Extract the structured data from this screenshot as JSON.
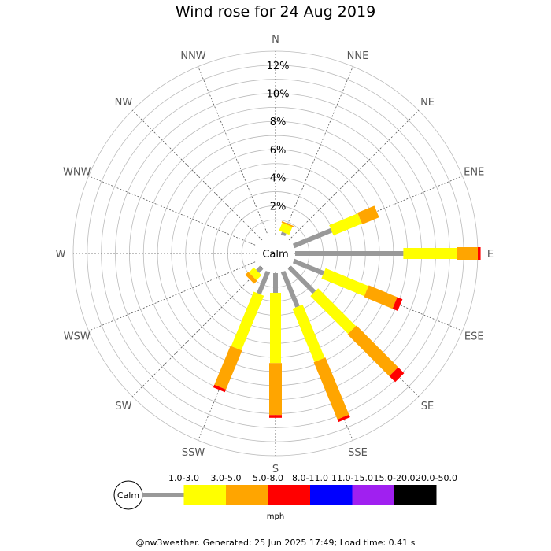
{
  "title": "Wind rose for 24 Aug 2019",
  "footer": "@nw3weather. Generated: 25 Jun 2025 17:49; Load time: 0.41 s",
  "chart_data": {
    "type": "wind-rose",
    "title": "Wind rose for 24 Aug 2019",
    "directions": [
      "N",
      "NNE",
      "NE",
      "ENE",
      "E",
      "ESE",
      "SE",
      "SSE",
      "S",
      "SSW",
      "SW",
      "WSW",
      "W",
      "WNW",
      "NW",
      "NNW"
    ],
    "radial_ticks": [
      "2%",
      "4%",
      "6%",
      "8%",
      "10%",
      "12%"
    ],
    "radial_max": 13,
    "grid": true,
    "calm_label": "Calm",
    "unit_label": "mph",
    "speed_bins": [
      {
        "label": "1.0-3.0",
        "color": "#999999"
      },
      {
        "label": "3.0-5.0",
        "color": "#ffff00"
      },
      {
        "label": "5.0-8.0",
        "color": "#ffa500"
      },
      {
        "label": "8.0-11.0",
        "color": "#ff0000"
      },
      {
        "label": "11.0-15.0",
        "color": "#0000ff"
      },
      {
        "label": "15.0-20.0",
        "color": "#a020f0"
      },
      {
        "label": "20.0-50.0",
        "color": "#000000"
      }
    ],
    "percentages": {
      "N": [
        0,
        0,
        0,
        0,
        0,
        0,
        0
      ],
      "NNE": [
        0.2,
        0.6,
        0.1,
        0,
        0,
        0,
        0
      ],
      "NE": [
        0,
        0,
        0,
        0,
        0,
        0,
        0
      ],
      "ENE": [
        2.9,
        2.2,
        1.3,
        0,
        0,
        0,
        0
      ],
      "E": [
        7.7,
        3.8,
        1.5,
        0.2,
        0,
        0,
        0
      ],
      "ESE": [
        2.3,
        3.3,
        2.2,
        0.4,
        0,
        0,
        0
      ],
      "SE": [
        2.5,
        3.8,
        4.2,
        0.6,
        0,
        0,
        0
      ],
      "SSE": [
        2.7,
        4.1,
        4.4,
        0.2,
        0,
        0,
        0
      ],
      "S": [
        1.4,
        5.0,
        3.7,
        0.2,
        0,
        0,
        0
      ],
      "SSW": [
        1.7,
        4.2,
        3.0,
        0.2,
        0,
        0,
        0
      ],
      "SW": [
        0.4,
        0.5,
        0.3,
        0,
        0,
        0,
        0
      ],
      "WSW": [
        0,
        0,
        0,
        0,
        0,
        0,
        0
      ],
      "W": [
        0,
        0,
        0,
        0,
        0,
        0,
        0
      ],
      "WNW": [
        0,
        0,
        0,
        0,
        0,
        0,
        0
      ],
      "NW": [
        0,
        0,
        0,
        0,
        0,
        0,
        0
      ],
      "NNW": [
        0,
        0,
        0,
        0,
        0,
        0,
        0
      ]
    }
  }
}
